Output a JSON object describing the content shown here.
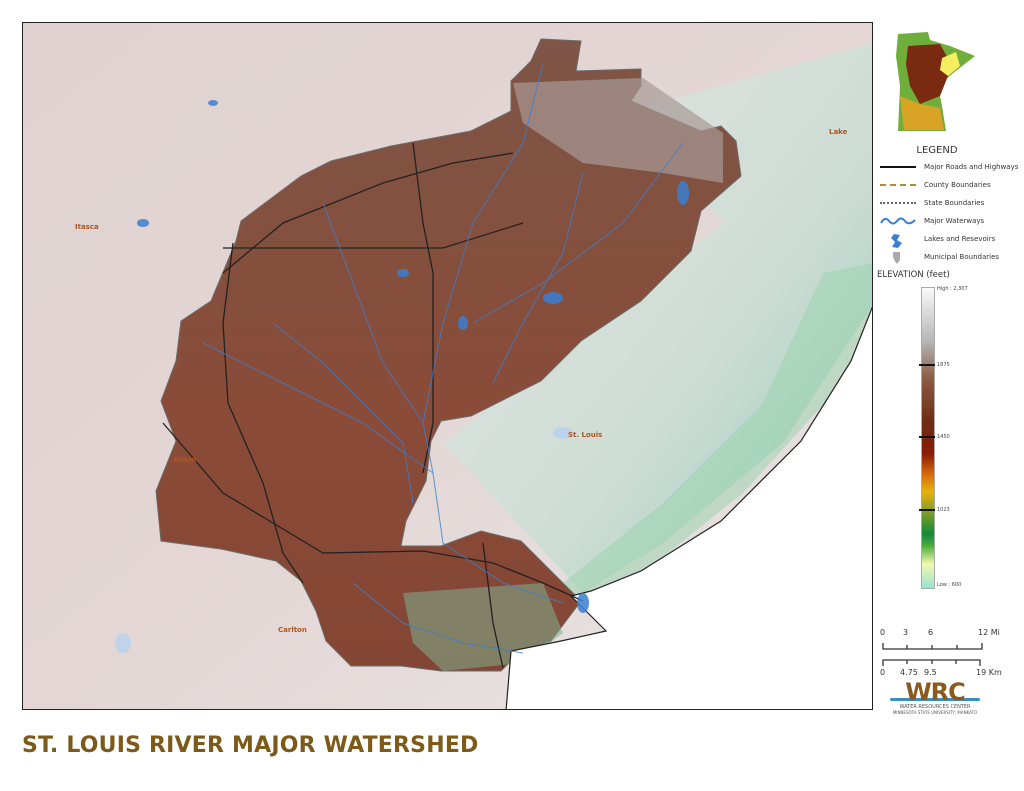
{
  "title": "ST. LOUIS RIVER MAJOR WATERSHED",
  "map": {
    "county_labels": [
      "Itasca",
      "Lake",
      "St. Louis",
      "Aitkin",
      "Carlton"
    ]
  },
  "legend": {
    "title": "LEGEND",
    "items": [
      {
        "label": "Major Roads and Highways",
        "icon": "road-line-icon",
        "color": "#111111"
      },
      {
        "label": "County Boundaries",
        "icon": "county-boundary-icon",
        "color": "#b08a3a"
      },
      {
        "label": "State Boundaries",
        "icon": "state-boundary-icon",
        "color": "#666666"
      },
      {
        "label": "Major Waterways",
        "icon": "waterway-icon",
        "color": "#3a7fd0"
      },
      {
        "label": "Lakes and Resevoirs",
        "icon": "lake-icon",
        "color": "#3a7fd0"
      },
      {
        "label": "Municipal Boundaries",
        "icon": "municipal-icon",
        "color": "#aaaaaa"
      }
    ]
  },
  "elevation": {
    "title": "ELEVATION (feet)",
    "labels": [
      "High : 2,307",
      "1875",
      "1450",
      "1023",
      "Low : 600"
    ]
  },
  "scale": {
    "miles": [
      "0",
      "3",
      "6",
      "12 Mi"
    ],
    "km": [
      "0",
      "4.75",
      "9.5",
      "19 Km"
    ]
  },
  "logo": {
    "text": "WRC",
    "line1": "WATER RESOURCES CENTER",
    "line2": "MINNESOTA STATE UNIVERSITY, MANKATO"
  },
  "colors": {
    "watershed": "#8a4e3a",
    "title": "#7c5a19",
    "water": "#3a7fd0"
  }
}
